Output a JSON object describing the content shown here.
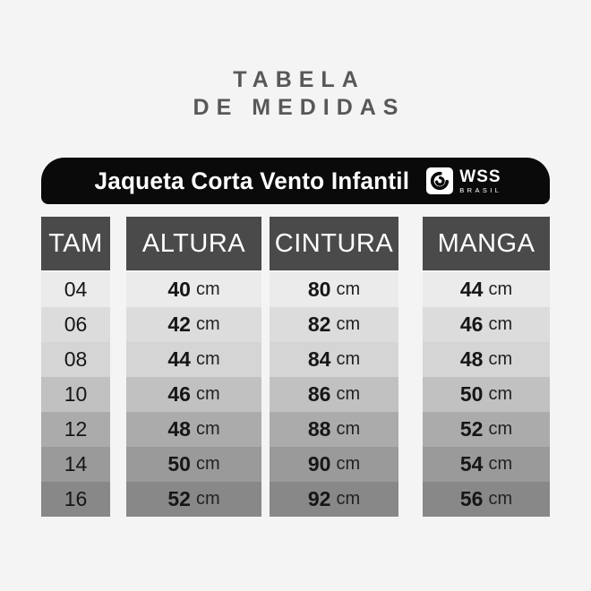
{
  "page": {
    "title_line1": "TABELA",
    "title_line2": "DE MEDIDAS"
  },
  "banner": {
    "product": "Jaqueta Corta Vento Infantil",
    "brand_name": "WSS",
    "brand_sub": "BRASIL",
    "brand_icon": "wss-swirl-icon"
  },
  "colors": {
    "page_bg": "#f4f4f4",
    "banner_bg": "#0a0a0a",
    "header_bg": "#4a4a4a",
    "title_text": "#58585a",
    "row_shades": [
      "#ebebeb",
      "#dcdcdc",
      "#d5d5d5",
      "#c1c1c1",
      "#ababab",
      "#9a9a9a",
      "#888888"
    ]
  },
  "chart_data": {
    "type": "table",
    "title": "TABELA DE MEDIDAS",
    "subtitle": "Jaqueta Corta Vento Infantil",
    "unit": "cm",
    "columns": [
      "TAM",
      "ALTURA",
      "CINTURA",
      "MANGA"
    ],
    "rows": [
      [
        "04",
        40,
        80,
        44
      ],
      [
        "06",
        42,
        82,
        46
      ],
      [
        "08",
        44,
        84,
        48
      ],
      [
        "10",
        46,
        86,
        50
      ],
      [
        "12",
        48,
        88,
        52
      ],
      [
        "14",
        50,
        90,
        54
      ],
      [
        "16",
        52,
        92,
        56
      ]
    ]
  }
}
